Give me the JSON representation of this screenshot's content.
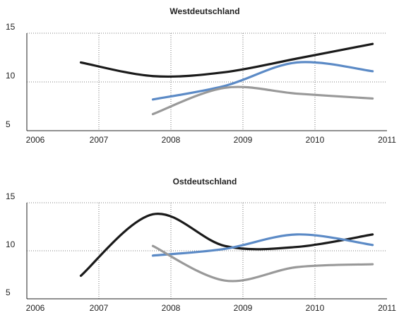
{
  "chart_data": [
    {
      "type": "line",
      "title": "Westdeutschland",
      "x": [
        2006.75,
        2007.75,
        2008.75,
        2009.75,
        2010.8
      ],
      "series": [
        {
          "color": "#1a1a1a",
          "values": [
            12,
            10.6,
            11,
            12.4,
            13.9
          ]
        },
        {
          "color": "#5b8ac6",
          "values": [
            null,
            8.2,
            9.6,
            12,
            11.1
          ]
        },
        {
          "color": "#999999",
          "values": [
            null,
            6.7,
            9.4,
            8.8,
            8.3
          ]
        }
      ],
      "xlim": [
        2006,
        2011
      ],
      "ylim": [
        5,
        15
      ],
      "xticks": [
        2006,
        2007,
        2008,
        2009,
        2010,
        2011
      ],
      "yticks": [
        5,
        10,
        15
      ],
      "grid": true
    },
    {
      "type": "line",
      "title": "Ostdeutschland",
      "x": [
        2006.75,
        2007.75,
        2008.75,
        2009.75,
        2010.8
      ],
      "series": [
        {
          "color": "#1a1a1a",
          "values": [
            7.4,
            13.8,
            10.5,
            10.4,
            11.7
          ]
        },
        {
          "color": "#5b8ac6",
          "values": [
            null,
            9.5,
            10.2,
            11.7,
            10.6
          ]
        },
        {
          "color": "#999999",
          "values": [
            null,
            10.5,
            6.9,
            8.3,
            8.6
          ]
        }
      ],
      "xlim": [
        2006,
        2011
      ],
      "ylim": [
        5,
        15
      ],
      "xticks": [
        2006,
        2007,
        2008,
        2009,
        2010,
        2011
      ],
      "yticks": [
        5,
        10,
        15
      ],
      "grid": true
    }
  ]
}
